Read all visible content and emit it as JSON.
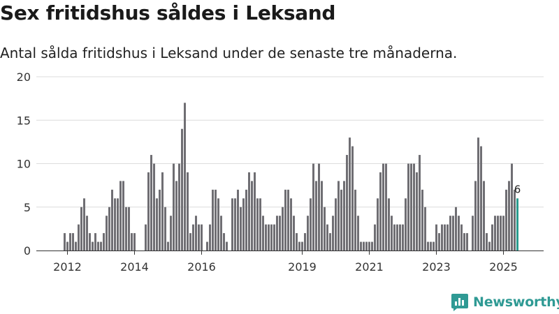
{
  "chart_data": {
    "type": "bar",
    "title": "Sex fritidshus såldes i Leksand",
    "subtitle": "Antal sålda fritidshus i Leksand under de senaste tre månaderna.",
    "xlabel": "",
    "ylabel": "",
    "ylim": [
      0,
      20
    ],
    "yticks": [
      0,
      5,
      10,
      15,
      20
    ],
    "grid": true,
    "xticks": [
      {
        "label": "2012",
        "index": 1
      },
      {
        "label": "2014",
        "index": 25
      },
      {
        "label": "2016",
        "index": 49
      },
      {
        "label": "2019",
        "index": 85
      },
      {
        "label": "2021",
        "index": 109
      },
      {
        "label": "2023",
        "index": 133
      },
      {
        "label": "2025",
        "index": 157
      }
    ],
    "values": [
      2,
      1,
      2,
      2,
      1,
      3,
      5,
      6,
      4,
      2,
      1,
      2,
      1,
      1,
      2,
      4,
      5,
      7,
      6,
      6,
      8,
      8,
      5,
      5,
      2,
      2,
      0,
      0,
      0,
      3,
      9,
      11,
      10,
      6,
      7,
      9,
      5,
      1,
      4,
      10,
      8,
      10,
      14,
      17,
      9,
      2,
      3,
      4,
      3,
      3,
      0,
      1,
      3,
      7,
      7,
      6,
      4,
      2,
      1,
      0,
      6,
      6,
      7,
      5,
      6,
      7,
      9,
      8,
      9,
      6,
      6,
      4,
      3,
      3,
      3,
      3,
      4,
      4,
      5,
      7,
      7,
      6,
      4,
      2,
      1,
      1,
      2,
      4,
      6,
      10,
      8,
      10,
      8,
      5,
      3,
      2,
      4,
      6,
      8,
      7,
      8,
      11,
      13,
      12,
      7,
      4,
      1,
      1,
      1,
      1,
      1,
      3,
      6,
      9,
      10,
      10,
      6,
      4,
      3,
      3,
      3,
      3,
      6,
      10,
      10,
      10,
      9,
      11,
      7,
      5,
      1,
      1,
      1,
      3,
      2,
      3,
      3,
      3,
      4,
      4,
      5,
      4,
      3,
      2,
      2,
      0,
      4,
      8,
      13,
      12,
      8,
      2,
      1,
      3,
      4,
      4,
      4,
      4,
      7,
      8,
      10,
      7,
      6
    ],
    "highlight_label": "6",
    "bar_color": "#6f6e73",
    "highlight_color": "#2a9d8f"
  },
  "brand": {
    "name": "Newsworthy",
    "color": "#2f9a94",
    "icon": "newsworthy-logo-icon"
  }
}
